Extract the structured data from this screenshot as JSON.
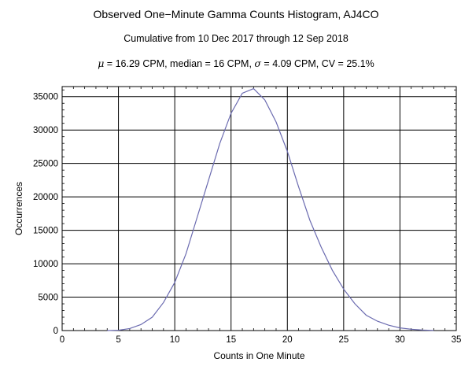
{
  "chart_data": {
    "type": "line",
    "title": "Observed One−Minute Gamma Counts Histogram, AJ4CO",
    "subtitle": "Cumulative from 10 Dec 2017 through 12 Sep 2018",
    "stats": {
      "mu_symbol": "μ",
      "mu_text": " = 16.29 CPM,   median = 16 CPM,   ",
      "sigma_symbol": "σ",
      "sigma_text": " = 4.09 CPM,   CV = 25.1%"
    },
    "xlabel": "Counts in One Minute",
    "ylabel": "Occurrences",
    "xlim": [
      0,
      35
    ],
    "ylim": [
      0,
      36500
    ],
    "xticks": [
      0,
      5,
      10,
      15,
      20,
      25,
      30,
      35
    ],
    "yticks": [
      0,
      5000,
      10000,
      15000,
      20000,
      25000,
      30000,
      35000
    ],
    "grid": true,
    "line_color": "#6b6bb0",
    "series": [
      {
        "x": [
          4,
          5,
          6,
          7,
          8,
          9,
          10,
          11,
          12,
          13,
          14,
          15,
          16,
          17,
          18,
          19,
          20,
          21,
          22,
          23,
          24,
          25,
          26,
          27,
          28,
          29,
          30,
          31,
          32,
          33
        ],
        "y": [
          0,
          50,
          300,
          900,
          2000,
          4200,
          7200,
          11500,
          17000,
          22500,
          28000,
          32500,
          35500,
          36200,
          34500,
          31200,
          26800,
          21500,
          16500,
          12500,
          9000,
          6200,
          4000,
          2300,
          1400,
          800,
          400,
          200,
          80,
          20
        ]
      }
    ]
  }
}
